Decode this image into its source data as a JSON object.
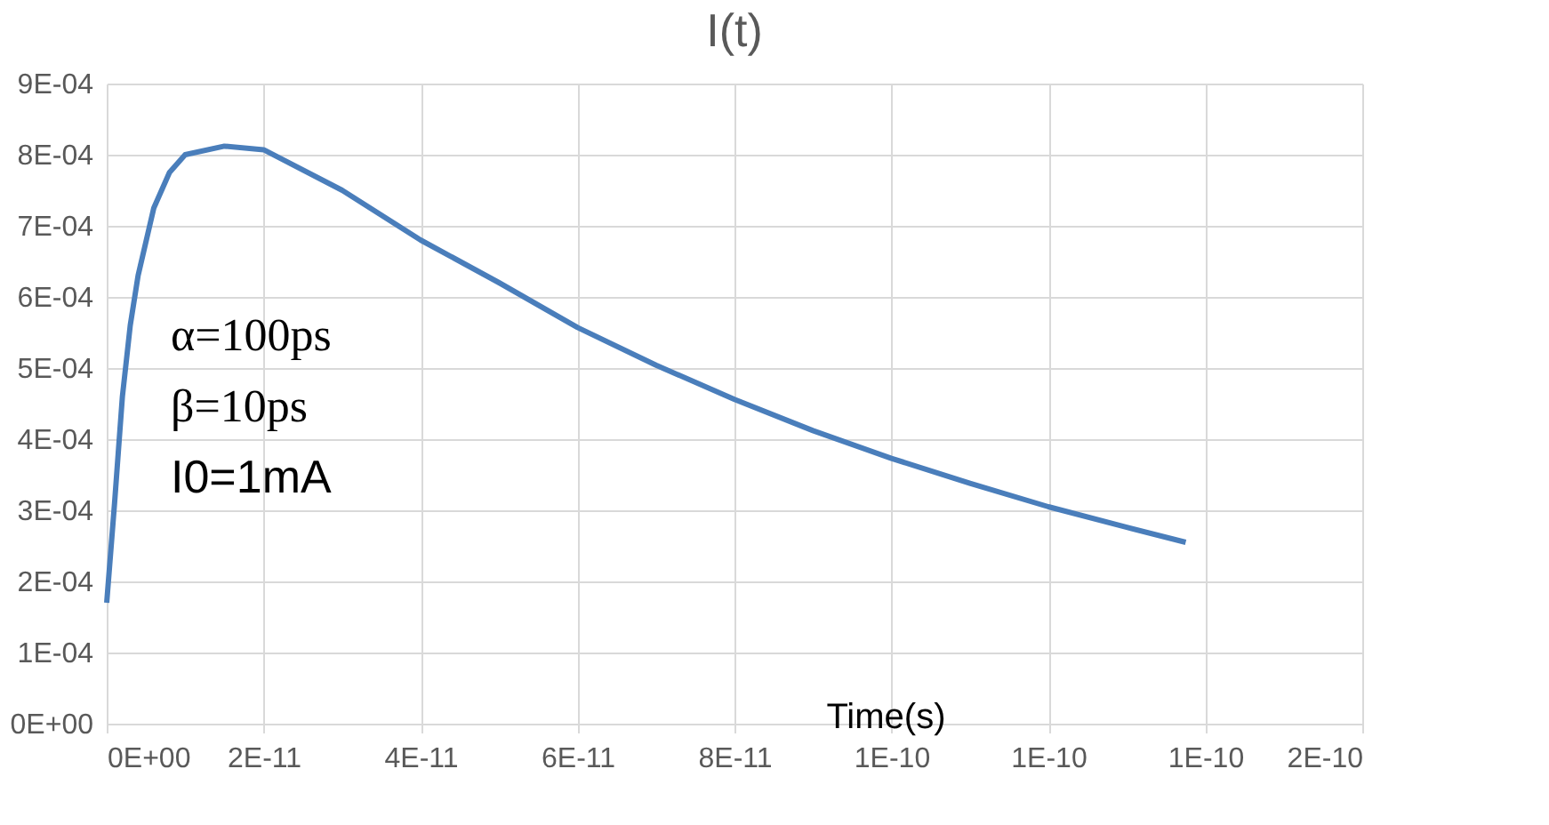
{
  "chart_data": {
    "type": "line",
    "title": "I(t)",
    "xlabel": "Time(s)",
    "x": [
      0,
      1e-12,
      2e-12,
      3e-12,
      4e-12,
      6e-12,
      8e-12,
      1e-11,
      1.5e-11,
      2e-11,
      3e-11,
      4e-11,
      5e-11,
      6e-11,
      7e-11,
      8e-11,
      9e-11,
      1e-10,
      1.1e-10,
      1.2e-10,
      1.3e-10,
      1.375e-10
    ],
    "series": [
      {
        "color": "#4a7ebb",
        "values": [
          0.00017,
          0.00031,
          0.00046,
          0.00056,
          0.00063,
          0.000725,
          0.000775,
          0.0008,
          0.000812,
          0.000807,
          0.00075,
          0.00068,
          0.00062,
          0.000557,
          0.000504,
          0.000456,
          0.000412,
          0.000373,
          0.000338,
          0.000305,
          0.000276,
          0.000255
        ]
      }
    ],
    "xlim": [
      0,
      1.6e-10
    ],
    "xticks": [
      {
        "value": 0,
        "label": "0E+00"
      },
      {
        "value": 2e-11,
        "label": "2E-11"
      },
      {
        "value": 4e-11,
        "label": "4E-11"
      },
      {
        "value": 6e-11,
        "label": "6E-11"
      },
      {
        "value": 8e-11,
        "label": "8E-11"
      },
      {
        "value": 1e-10,
        "label": "1E-10"
      },
      {
        "value": 1.2e-10,
        "label": "1E-10"
      },
      {
        "value": 1.4e-10,
        "label": "1E-10"
      },
      {
        "value": 1.6e-10,
        "label": "2E-10"
      }
    ],
    "ylim": [
      0,
      0.0009
    ],
    "yticks": [
      {
        "value": 0,
        "label": "0E+00"
      },
      {
        "value": 0.0001,
        "label": "1E-04"
      },
      {
        "value": 0.0002,
        "label": "2E-04"
      },
      {
        "value": 0.0003,
        "label": "3E-04"
      },
      {
        "value": 0.0004,
        "label": "4E-04"
      },
      {
        "value": 0.0005,
        "label": "5E-04"
      },
      {
        "value": 0.0006,
        "label": "6E-04"
      },
      {
        "value": 0.0007,
        "label": "7E-04"
      },
      {
        "value": 0.0008,
        "label": "8E-04"
      },
      {
        "value": 0.0009,
        "label": "9E-04"
      }
    ],
    "grid": true,
    "marker": "none",
    "line_style": "solid",
    "annotations": [
      "α=100ps",
      "β=10ps",
      "I0=1mA"
    ]
  }
}
